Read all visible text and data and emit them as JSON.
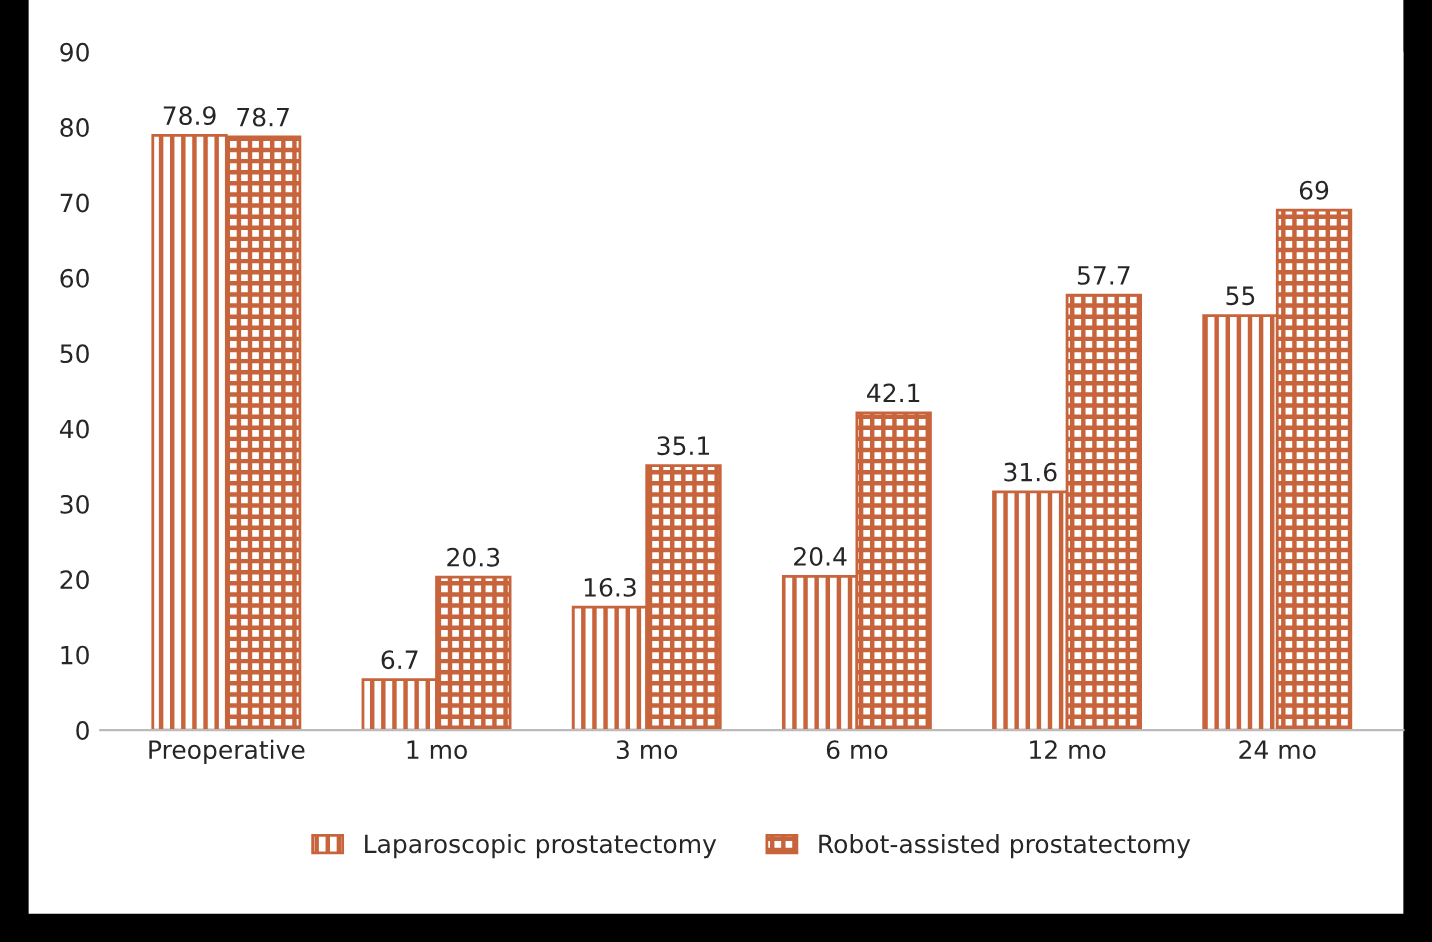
{
  "chart_data": {
    "type": "bar",
    "categories": [
      "Preoperative",
      "1 mo",
      "3 mo",
      "6 mo",
      "12 mo",
      "24 mo"
    ],
    "series": [
      {
        "name": "Laparoscopic prostatectomy",
        "color": "#c8643c",
        "values": [
          78.9,
          6.7,
          16.3,
          20.4,
          31.6,
          55
        ]
      },
      {
        "name": "Robot-assisted prostatectomy",
        "color": "#c8643c",
        "values": [
          78.7,
          20.3,
          35.1,
          42.1,
          57.7,
          69
        ]
      }
    ],
    "ylim": [
      0,
      90
    ],
    "yticks": [
      0,
      10,
      20,
      30,
      40,
      50,
      60,
      70,
      80,
      90
    ],
    "grid": false,
    "legend": "bottom",
    "data_labels": true
  }
}
